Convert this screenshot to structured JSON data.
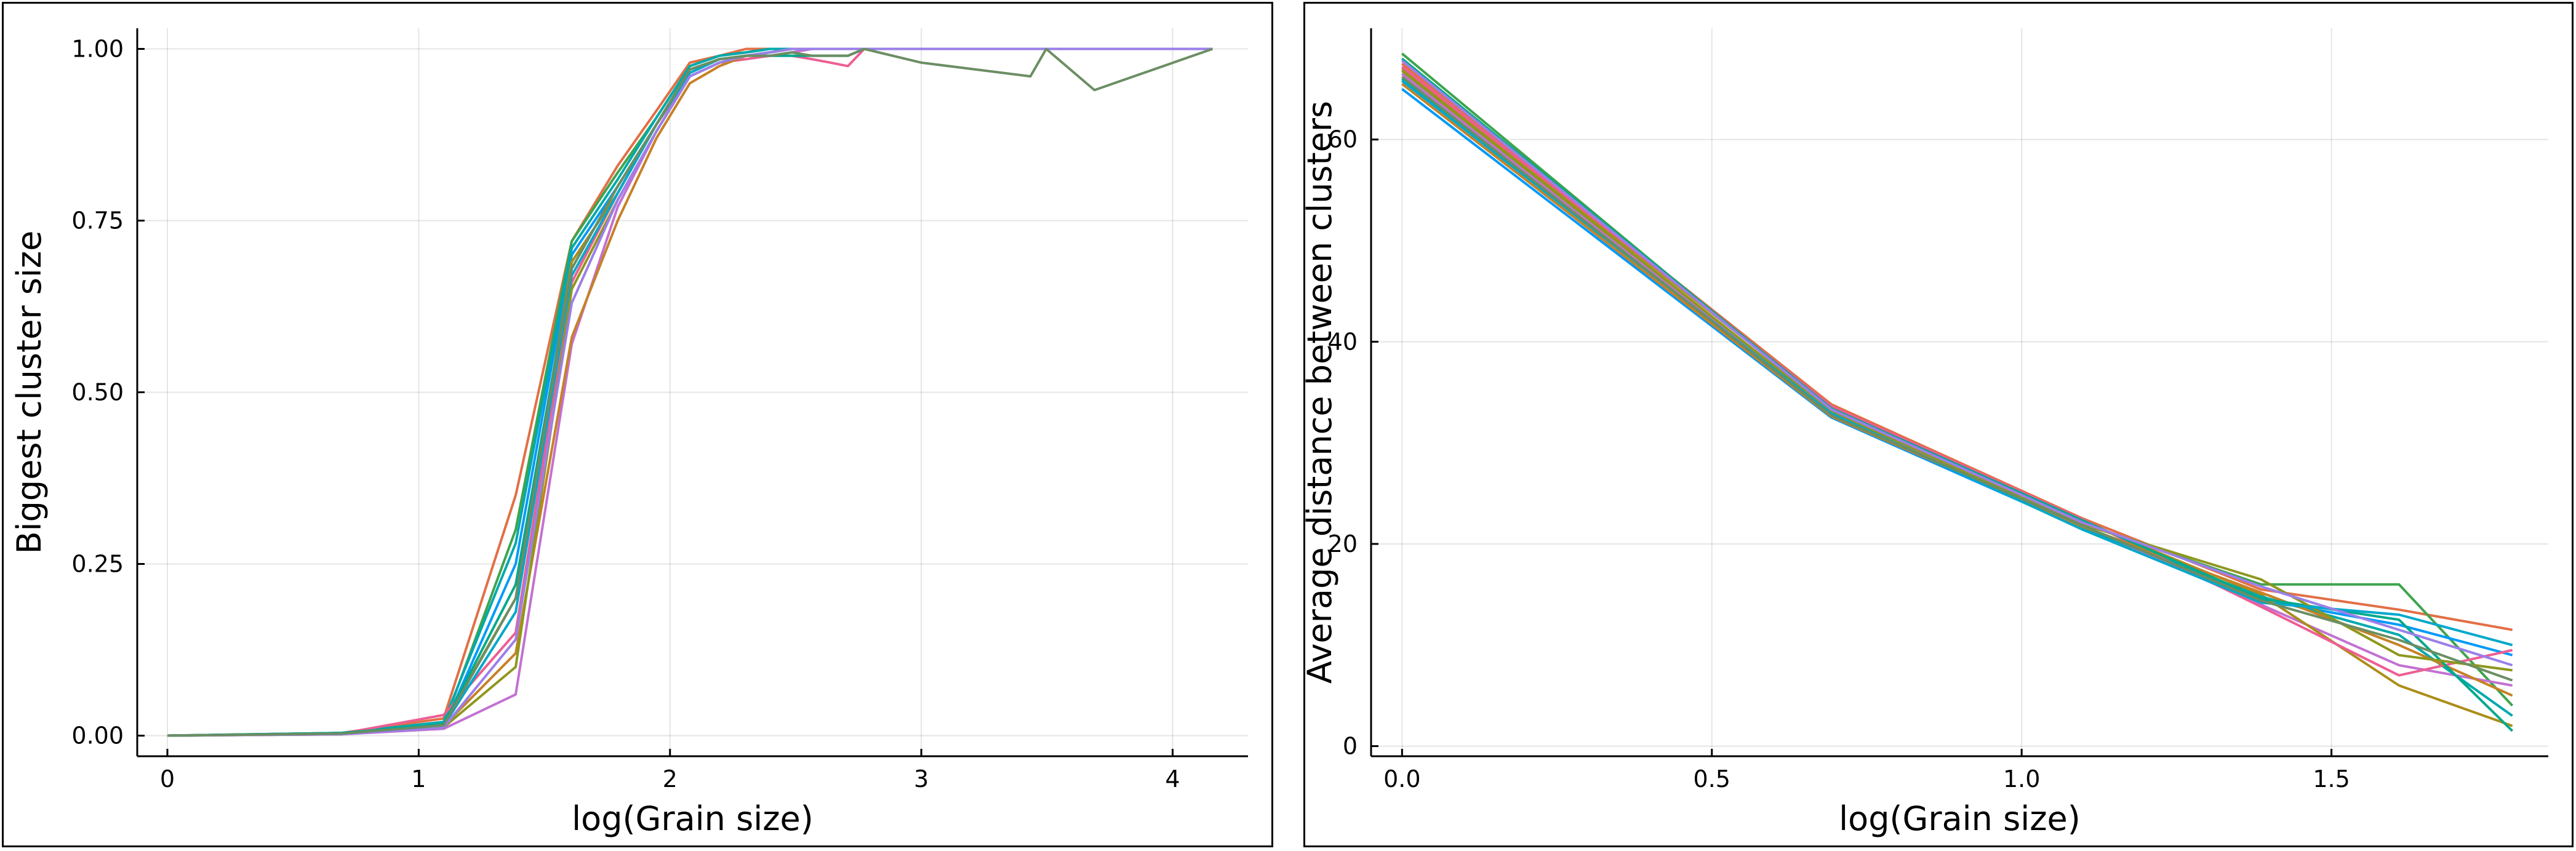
{
  "chart_data": [
    {
      "type": "line",
      "title": "",
      "xlabel": "log(Grain size)",
      "ylabel": "Biggest cluster size",
      "xlim": [
        -0.12,
        4.3
      ],
      "ylim": [
        -0.03,
        1.03
      ],
      "xticks": [
        0,
        1,
        2,
        3,
        4
      ],
      "xtick_labels": [
        "0",
        "1",
        "2",
        "3",
        "4"
      ],
      "yticks": [
        0,
        0.25,
        0.5,
        0.75,
        1.0
      ],
      "ytick_labels": [
        "0.00",
        "0.25",
        "0.50",
        "0.75",
        "1.00"
      ],
      "grid": true,
      "legend": "none",
      "x": [
        0,
        0.693,
        1.099,
        1.386,
        1.609,
        1.792,
        1.946,
        2.079,
        2.197,
        2.303,
        2.398,
        2.485,
        2.565,
        2.639,
        2.708,
        2.773,
        3.0,
        3.434,
        3.497,
        3.689,
        4.159
      ],
      "series": [
        {
          "color": "#e26f46",
          "y": [
            0,
            0.004,
            0.025,
            0.35,
            0.72,
            0.83,
            0.91,
            0.98,
            0.99,
            1,
            1,
            1,
            1,
            1,
            1,
            1,
            1,
            1,
            1,
            1,
            1
          ]
        },
        {
          "color": "#3da44d",
          "y": [
            0,
            0.003,
            0.015,
            0.3,
            0.72,
            0.82,
            0.9,
            0.975,
            0.99,
            0.995,
            1,
            1,
            1,
            1,
            1,
            1,
            1,
            1,
            1,
            1,
            1
          ]
        },
        {
          "color": "#009af9",
          "y": [
            0,
            0.003,
            0.012,
            0.25,
            0.7,
            0.8,
            0.89,
            0.97,
            0.985,
            0.99,
            0.995,
            1,
            1,
            1,
            1,
            1,
            1,
            1,
            1,
            1,
            1
          ]
        },
        {
          "color": "#c271d2",
          "y": [
            0,
            0.002,
            0.01,
            0.06,
            0.57,
            0.77,
            0.88,
            0.96,
            0.98,
            0.99,
            0.99,
            0.995,
            1,
            1,
            1,
            1,
            1,
            1,
            1,
            1,
            1
          ]
        },
        {
          "color": "#ac8d18",
          "y": [
            0,
            0.003,
            0.018,
            0.2,
            0.69,
            0.79,
            0.89,
            0.97,
            0.985,
            0.99,
            0.995,
            1,
            1,
            1,
            1,
            1,
            1,
            1,
            1,
            1,
            1
          ]
        },
        {
          "color": "#00a9ad",
          "y": [
            0,
            0.004,
            0.02,
            0.28,
            0.71,
            0.81,
            0.9,
            0.975,
            0.99,
            0.995,
            1,
            1,
            1,
            1,
            1,
            1,
            1,
            1,
            1,
            1,
            1
          ]
        },
        {
          "color": "#ed5e93",
          "y": [
            0,
            0.003,
            0.03,
            0.15,
            0.66,
            0.79,
            0.89,
            0.96,
            0.98,
            0.985,
            0.99,
            0.99,
            0.985,
            0.98,
            0.975,
            1,
            1,
            1,
            1,
            1,
            1
          ]
        },
        {
          "color": "#c68125",
          "y": [
            0,
            0.002,
            0.014,
            0.12,
            0.58,
            0.75,
            0.87,
            0.95,
            0.975,
            0.99,
            0.995,
            1,
            1,
            1,
            1,
            1,
            1,
            1,
            1,
            1,
            1
          ]
        },
        {
          "color": "#00a98d",
          "y": [
            0,
            0.004,
            0.016,
            0.22,
            0.68,
            0.8,
            0.89,
            0.97,
            0.985,
            0.99,
            0.99,
            0.99,
            0.99,
            0.99,
            0.99,
            1,
            1,
            1,
            1,
            1,
            1
          ]
        },
        {
          "color": "#8e971d",
          "y": [
            0,
            0.003,
            0.012,
            0.1,
            0.65,
            0.78,
            0.88,
            0.96,
            0.98,
            0.99,
            0.995,
            1,
            1,
            1,
            1,
            1,
            1,
            1,
            1,
            1,
            1
          ]
        },
        {
          "color": "#00a8cb",
          "y": [
            0,
            0.003,
            0.014,
            0.18,
            0.67,
            0.79,
            0.89,
            0.965,
            0.985,
            0.99,
            0.995,
            1,
            1,
            1,
            1,
            1,
            1,
            1,
            1,
            1,
            1
          ]
        },
        {
          "color": "#9b7fe9",
          "y": [
            0,
            0.002,
            0.012,
            0.14,
            0.63,
            0.78,
            0.88,
            0.96,
            0.98,
            0.99,
            0.995,
            1,
            1,
            1,
            1,
            1,
            1,
            1,
            1,
            1,
            1
          ]
        },
        {
          "color": "#6b8e63",
          "y": [
            0,
            0.003,
            0.015,
            0.2,
            0.68,
            0.8,
            0.89,
            0.97,
            0.985,
            0.99,
            0.99,
            0.995,
            0.99,
            0.99,
            0.99,
            1,
            0.98,
            0.96,
            1,
            0.94,
            1
          ]
        }
      ]
    },
    {
      "type": "line",
      "title": "",
      "xlabel": "log(Grain size)",
      "ylabel": "Average distance between clusters",
      "xlim": [
        -0.05,
        1.85
      ],
      "ylim": [
        -1,
        71
      ],
      "xticks": [
        0,
        0.5,
        1.0,
        1.5
      ],
      "xtick_labels": [
        "0.0",
        "0.5",
        "1.0",
        "1.5"
      ],
      "yticks": [
        0,
        20,
        40,
        60
      ],
      "ytick_labels": [
        "0",
        "20",
        "40",
        "60"
      ],
      "grid": true,
      "legend": "none",
      "x": [
        0,
        0.693,
        1.099,
        1.386,
        1.609,
        1.792
      ],
      "series": [
        {
          "color": "#e26f46",
          "y": [
            67.5,
            33.8,
            22.5,
            15.5,
            13.5,
            11.5
          ]
        },
        {
          "color": "#3da44d",
          "y": [
            68.5,
            33.2,
            22.0,
            16.0,
            16.0,
            4.0
          ]
        },
        {
          "color": "#009af9",
          "y": [
            65.0,
            32.5,
            21.5,
            14.5,
            12.0,
            9.0
          ]
        },
        {
          "color": "#c271d2",
          "y": [
            66.5,
            33.0,
            21.8,
            14.0,
            8.0,
            6.0
          ]
        },
        {
          "color": "#ac8d18",
          "y": [
            67.0,
            33.5,
            22.2,
            15.0,
            6.0,
            2.0
          ]
        },
        {
          "color": "#00a9ad",
          "y": [
            66.0,
            32.8,
            21.6,
            14.8,
            11.0,
            3.0
          ]
        },
        {
          "color": "#ed5e93",
          "y": [
            67.2,
            33.6,
            22.4,
            13.8,
            7.0,
            9.5
          ]
        },
        {
          "color": "#c68125",
          "y": [
            65.5,
            32.6,
            21.7,
            15.2,
            10.0,
            5.0
          ]
        },
        {
          "color": "#00a98d",
          "y": [
            68.0,
            33.4,
            22.3,
            14.6,
            12.5,
            1.5
          ]
        },
        {
          "color": "#8e971d",
          "y": [
            66.8,
            33.1,
            21.9,
            16.5,
            9.0,
            7.5
          ]
        },
        {
          "color": "#00a8cb",
          "y": [
            65.8,
            32.9,
            21.4,
            14.2,
            13.0,
            10.0
          ]
        },
        {
          "color": "#9b7fe9",
          "y": [
            67.8,
            33.3,
            22.1,
            15.8,
            11.5,
            8.0
          ]
        },
        {
          "color": "#6b8e63",
          "y": [
            66.2,
            32.7,
            21.8,
            14.4,
            10.5,
            6.5
          ]
        }
      ]
    }
  ]
}
